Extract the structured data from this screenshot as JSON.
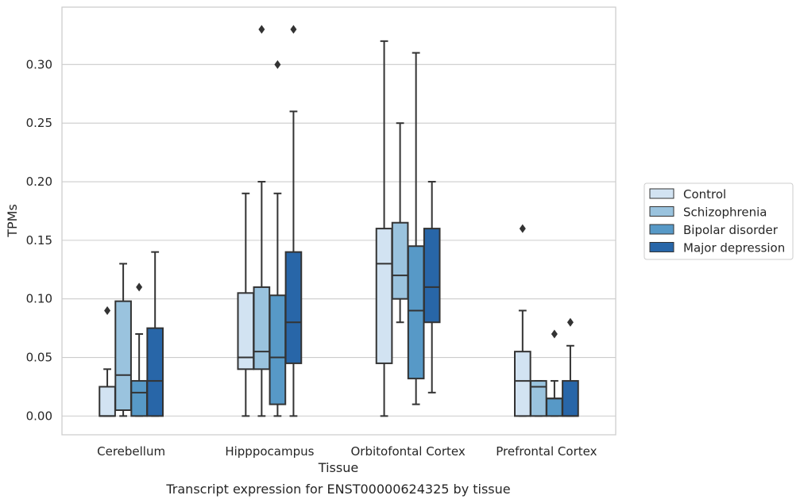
{
  "caption": "Transcript expression for ENST00000624325 by tissue",
  "chart_data": {
    "type": "boxplot",
    "xlabel": "Tissue",
    "ylabel": "TPMs",
    "ylim": [
      -0.016,
      0.349
    ],
    "yticks": [
      "0.00",
      "0.05",
      "0.10",
      "0.15",
      "0.20",
      "0.25",
      "0.30"
    ],
    "grid": "horizontal",
    "legend_position": "right",
    "categories": [
      "Cerebellum",
      "Hipppocampus",
      "Orbitofontal Cortex",
      "Prefrontal Cortex"
    ],
    "series": [
      {
        "name": "Control",
        "color": "#d2e3f2",
        "boxes": [
          {
            "whislo": 0.0,
            "q1": 0.0,
            "med": 0.0,
            "q3": 0.025,
            "whishi": 0.04,
            "fliers": [
              0.09
            ]
          },
          {
            "whislo": 0.0,
            "q1": 0.04,
            "med": 0.05,
            "q3": 0.105,
            "whishi": 0.19,
            "fliers": []
          },
          {
            "whislo": 0.0,
            "q1": 0.045,
            "med": 0.13,
            "q3": 0.16,
            "whishi": 0.32,
            "fliers": []
          },
          {
            "whislo": 0.0,
            "q1": 0.0,
            "med": 0.03,
            "q3": 0.055,
            "whishi": 0.09,
            "fliers": [
              0.16
            ]
          }
        ]
      },
      {
        "name": "Schizophrenia",
        "color": "#9ac3de",
        "boxes": [
          {
            "whislo": 0.0,
            "q1": 0.005,
            "med": 0.035,
            "q3": 0.098,
            "whishi": 0.13,
            "fliers": []
          },
          {
            "whislo": 0.0,
            "q1": 0.04,
            "med": 0.055,
            "q3": 0.11,
            "whishi": 0.2,
            "fliers": [
              0.33
            ]
          },
          {
            "whislo": 0.08,
            "q1": 0.1,
            "med": 0.12,
            "q3": 0.165,
            "whishi": 0.25,
            "fliers": []
          },
          {
            "whislo": 0.0,
            "q1": 0.0,
            "med": 0.025,
            "q3": 0.03,
            "whishi": 0.03,
            "fliers": []
          }
        ]
      },
      {
        "name": "Bipolar disorder",
        "color": "#5799c7",
        "boxes": [
          {
            "whislo": 0.0,
            "q1": 0.0,
            "med": 0.02,
            "q3": 0.03,
            "whishi": 0.07,
            "fliers": [
              0.11
            ]
          },
          {
            "whislo": 0.0,
            "q1": 0.01,
            "med": 0.05,
            "q3": 0.103,
            "whishi": 0.19,
            "fliers": [
              0.3
            ]
          },
          {
            "whislo": 0.01,
            "q1": 0.032,
            "med": 0.09,
            "q3": 0.145,
            "whishi": 0.31,
            "fliers": []
          },
          {
            "whislo": 0.0,
            "q1": 0.0,
            "med": 0.015,
            "q3": 0.015,
            "whishi": 0.03,
            "fliers": [
              0.07
            ]
          }
        ]
      },
      {
        "name": "Major depression",
        "color": "#2866a8",
        "boxes": [
          {
            "whislo": 0.0,
            "q1": 0.0,
            "med": 0.03,
            "q3": 0.075,
            "whishi": 0.14,
            "fliers": []
          },
          {
            "whislo": 0.0,
            "q1": 0.045,
            "med": 0.08,
            "q3": 0.14,
            "whishi": 0.26,
            "fliers": [
              0.33
            ]
          },
          {
            "whislo": 0.02,
            "q1": 0.08,
            "med": 0.11,
            "q3": 0.16,
            "whishi": 0.2,
            "fliers": []
          },
          {
            "whislo": 0.0,
            "q1": 0.0,
            "med": 0.0,
            "q3": 0.03,
            "whishi": 0.06,
            "fliers": [
              0.08
            ]
          }
        ]
      }
    ]
  }
}
